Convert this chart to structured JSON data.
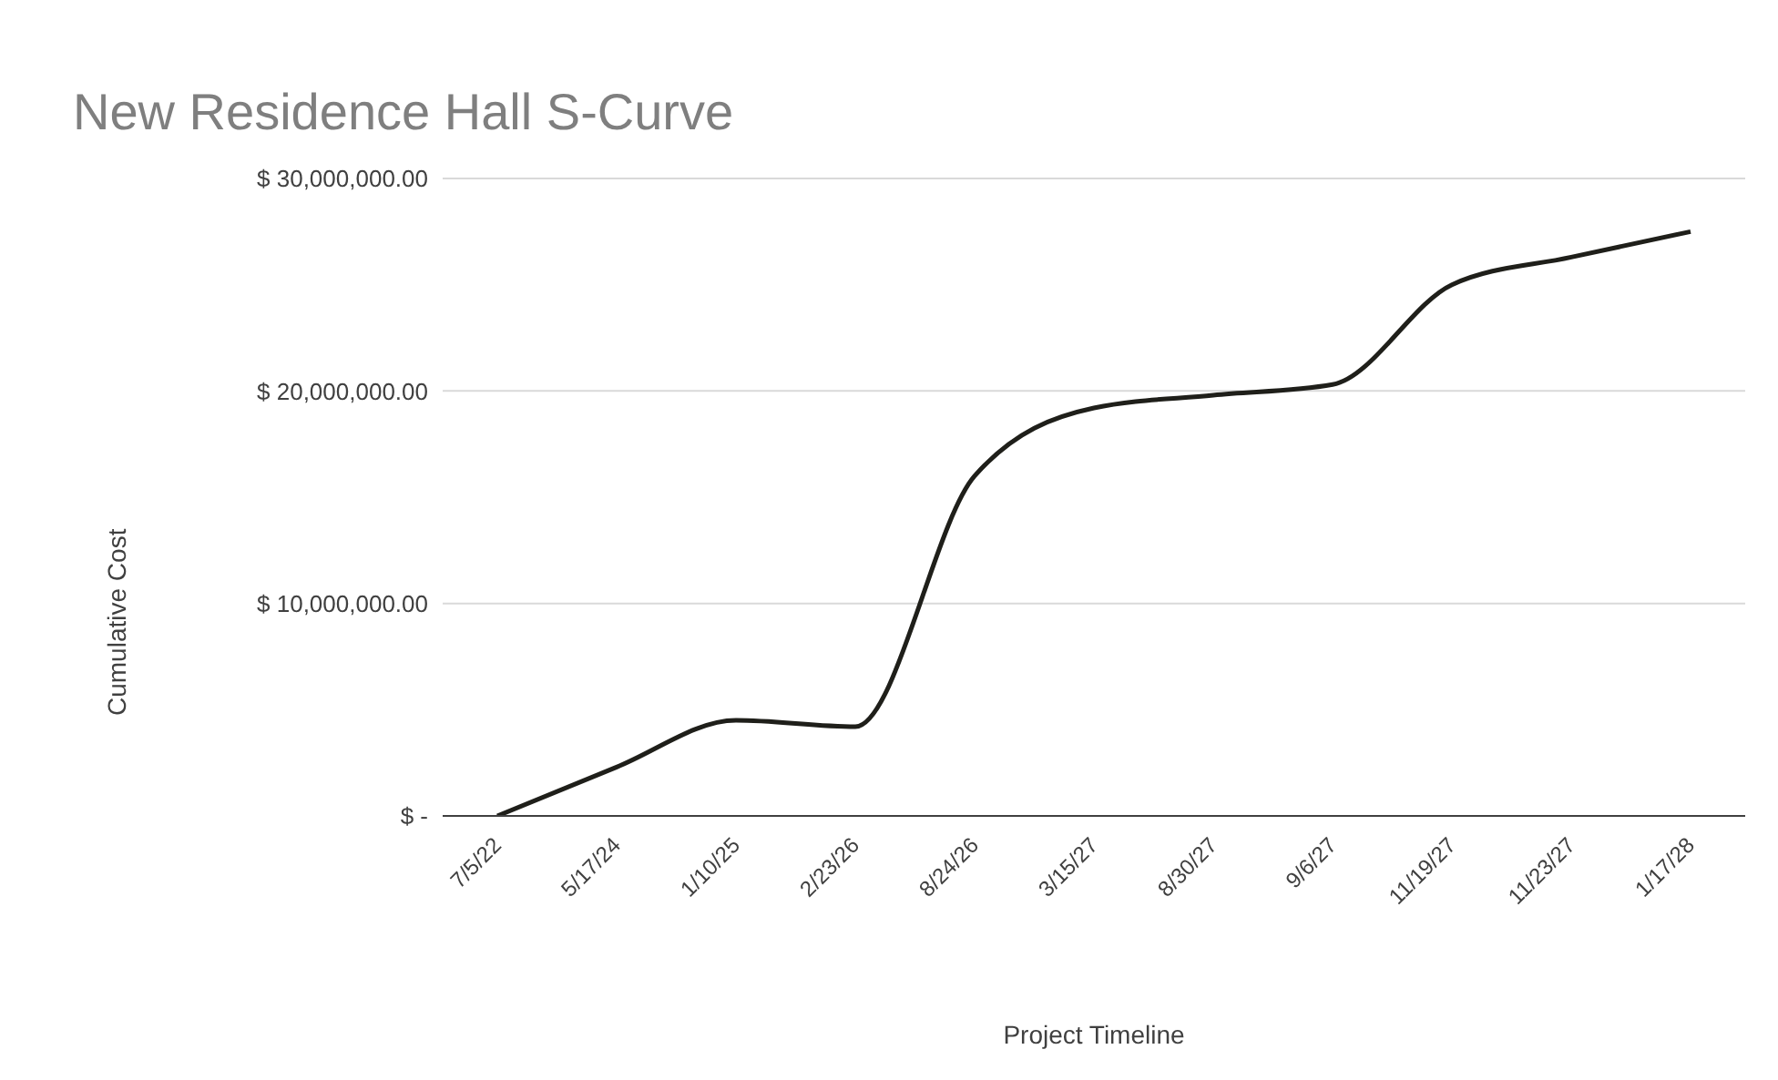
{
  "chart_data": {
    "type": "line",
    "title": "New Residence Hall S-Curve",
    "xlabel": "Project Timeline",
    "ylabel": "Cumulative Cost",
    "categories": [
      "7/5/22",
      "5/17/24",
      "1/10/25",
      "2/23/26",
      "8/24/26",
      "3/15/27",
      "8/30/27",
      "9/6/27",
      "11/19/27",
      "11/23/27",
      "1/17/28"
    ],
    "series": [
      {
        "color": "#1f1f1a",
        "values": [
          0,
          2300000,
          4500000,
          4200000,
          16000000,
          19200000,
          19800000,
          20300000,
          25000000,
          26300000,
          27500000
        ]
      }
    ],
    "ylim": [
      0,
      30000000
    ],
    "yticks": [
      {
        "value": 0,
        "label": "$ -"
      },
      {
        "value": 10000000,
        "label": "$ 10,000,000.00"
      },
      {
        "value": 20000000,
        "label": "$ 20,000,000.00"
      },
      {
        "value": 30000000,
        "label": "$ 30,000,000.00"
      }
    ],
    "grid": "y",
    "marker": "none",
    "line_style": "solid"
  }
}
